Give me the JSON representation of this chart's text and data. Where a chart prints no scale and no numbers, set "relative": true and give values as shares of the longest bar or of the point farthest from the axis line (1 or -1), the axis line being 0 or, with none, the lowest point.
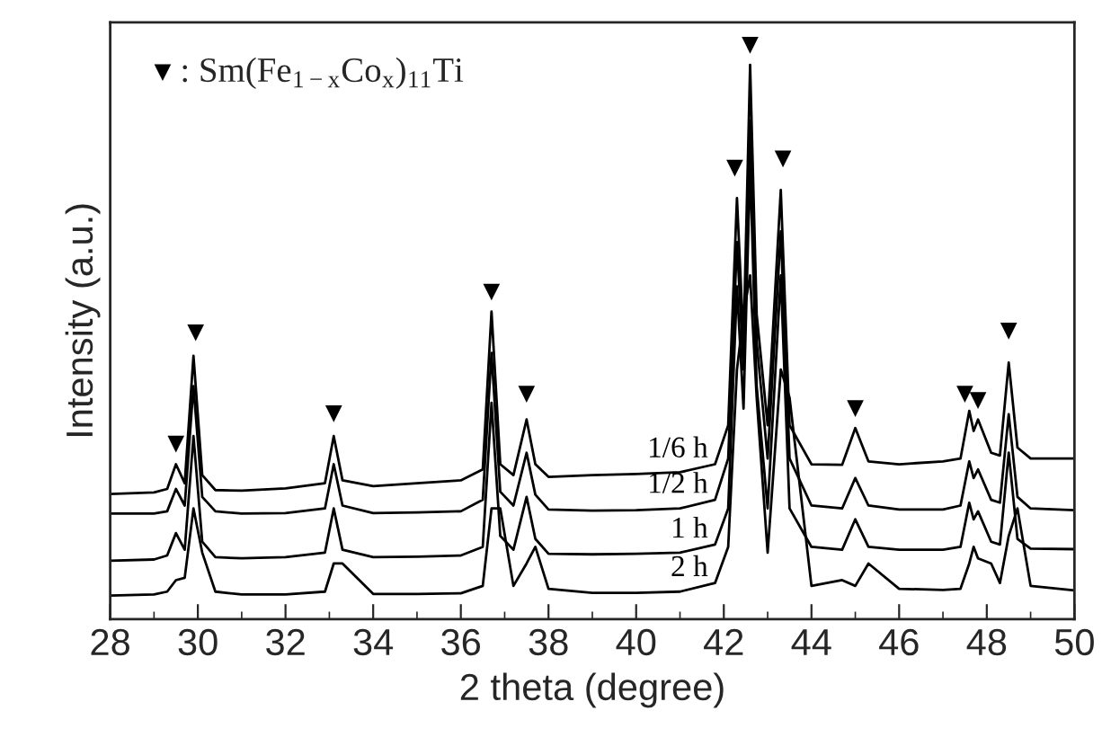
{
  "chart_data": {
    "type": "line",
    "xlabel": "2 theta (degree)",
    "ylabel": "Intensity (a.u.)",
    "relative": true,
    "xlim": [
      28,
      50
    ],
    "xticks": [
      28,
      30,
      32,
      34,
      36,
      38,
      40,
      42,
      44,
      46,
      48,
      50
    ],
    "tick_labels": "x",
    "legend": "top left",
    "marker": "none",
    "line_style": "solid",
    "x": [
      28,
      29,
      29.3,
      29.5,
      29.7,
      29.9,
      30.1,
      30.4,
      31,
      32,
      32.9,
      33.1,
      33.3,
      34,
      35,
      36,
      36.5,
      36.7,
      36.9,
      37.2,
      37.5,
      37.7,
      38,
      39,
      40,
      41,
      41.8,
      42.1,
      42.3,
      42.45,
      42.6,
      42.75,
      43.0,
      43.3,
      43.5,
      44,
      44.7,
      45.0,
      45.3,
      46,
      47,
      47.4,
      47.6,
      47.7,
      47.8,
      48.1,
      48.3,
      48.5,
      48.7,
      49,
      50
    ],
    "series": [
      {
        "name": "1/6 h",
        "color": "#000000",
        "values": [
          0.218,
          0.221,
          0.227,
          0.27,
          0.237,
          0.459,
          0.251,
          0.225,
          0.224,
          0.228,
          0.237,
          0.319,
          0.242,
          0.232,
          0.237,
          0.242,
          0.261,
          0.536,
          0.27,
          0.251,
          0.348,
          0.27,
          0.248,
          0.251,
          0.253,
          0.256,
          0.27,
          0.338,
          0.734,
          0.483,
          0.966,
          0.531,
          0.338,
          0.748,
          0.338,
          0.27,
          0.269,
          0.333,
          0.275,
          0.27,
          0.275,
          0.28,
          0.363,
          0.328,
          0.348,
          0.29,
          0.285,
          0.447,
          0.299,
          0.28,
          0.28
        ]
      },
      {
        "name": "1/2 h",
        "color": "#000000",
        "values": [
          0.184,
          0.184,
          0.188,
          0.227,
          0.198,
          0.406,
          0.213,
          0.188,
          0.184,
          0.185,
          0.193,
          0.27,
          0.198,
          0.185,
          0.186,
          0.188,
          0.208,
          0.464,
          0.222,
          0.198,
          0.29,
          0.217,
          0.191,
          0.189,
          0.19,
          0.193,
          0.208,
          0.28,
          0.657,
          0.435,
          0.869,
          0.483,
          0.28,
          0.676,
          0.28,
          0.198,
          0.193,
          0.246,
          0.198,
          0.191,
          0.191,
          0.198,
          0.275,
          0.246,
          0.261,
          0.208,
          0.203,
          0.357,
          0.213,
          0.193,
          0.19
        ]
      },
      {
        "name": "1 h",
        "color": "#000000",
        "values": [
          0.102,
          0.104,
          0.111,
          0.15,
          0.121,
          0.319,
          0.135,
          0.108,
          0.106,
          0.108,
          0.116,
          0.193,
          0.121,
          0.108,
          0.109,
          0.111,
          0.126,
          0.377,
          0.145,
          0.121,
          0.213,
          0.14,
          0.114,
          0.113,
          0.114,
          0.116,
          0.13,
          0.193,
          0.58,
          0.367,
          0.792,
          0.406,
          0.193,
          0.599,
          0.193,
          0.126,
          0.121,
          0.174,
          0.126,
          0.121,
          0.121,
          0.126,
          0.203,
          0.174,
          0.188,
          0.135,
          0.13,
          0.29,
          0.14,
          0.123,
          0.122
        ]
      },
      {
        "name": "2 h",
        "color": "#000000",
        "values": [
          0.041,
          0.043,
          0.048,
          0.068,
          0.072,
          0.193,
          0.116,
          0.048,
          0.043,
          0.043,
          0.048,
          0.097,
          0.097,
          0.044,
          0.044,
          0.045,
          0.058,
          0.193,
          0.193,
          0.058,
          0.097,
          0.126,
          0.053,
          0.046,
          0.046,
          0.048,
          0.063,
          0.126,
          0.435,
          0.531,
          0.599,
          0.386,
          0.116,
          0.435,
          0.386,
          0.058,
          0.068,
          0.058,
          0.097,
          0.053,
          0.051,
          0.053,
          0.097,
          0.126,
          0.106,
          0.097,
          0.063,
          0.145,
          0.193,
          0.058,
          0.05
        ]
      },
      {
        "name": ": Sm(Fe$_{1−x}$Co$_{x}$)$_{11}$Ti",
        "type": "scatter",
        "marker": "triangle",
        "color": "#000000",
        "x": [
          29.5,
          29.95,
          33.1,
          36.7,
          37.5,
          42.25,
          42.6,
          43.35,
          45.0,
          47.5,
          47.8,
          48.5
        ],
        "values": [
          0.305,
          0.499,
          0.358,
          0.57,
          0.392,
          0.786,
          1.0,
          0.802,
          0.367,
          0.392,
          0.381,
          0.502
        ]
      }
    ]
  }
}
